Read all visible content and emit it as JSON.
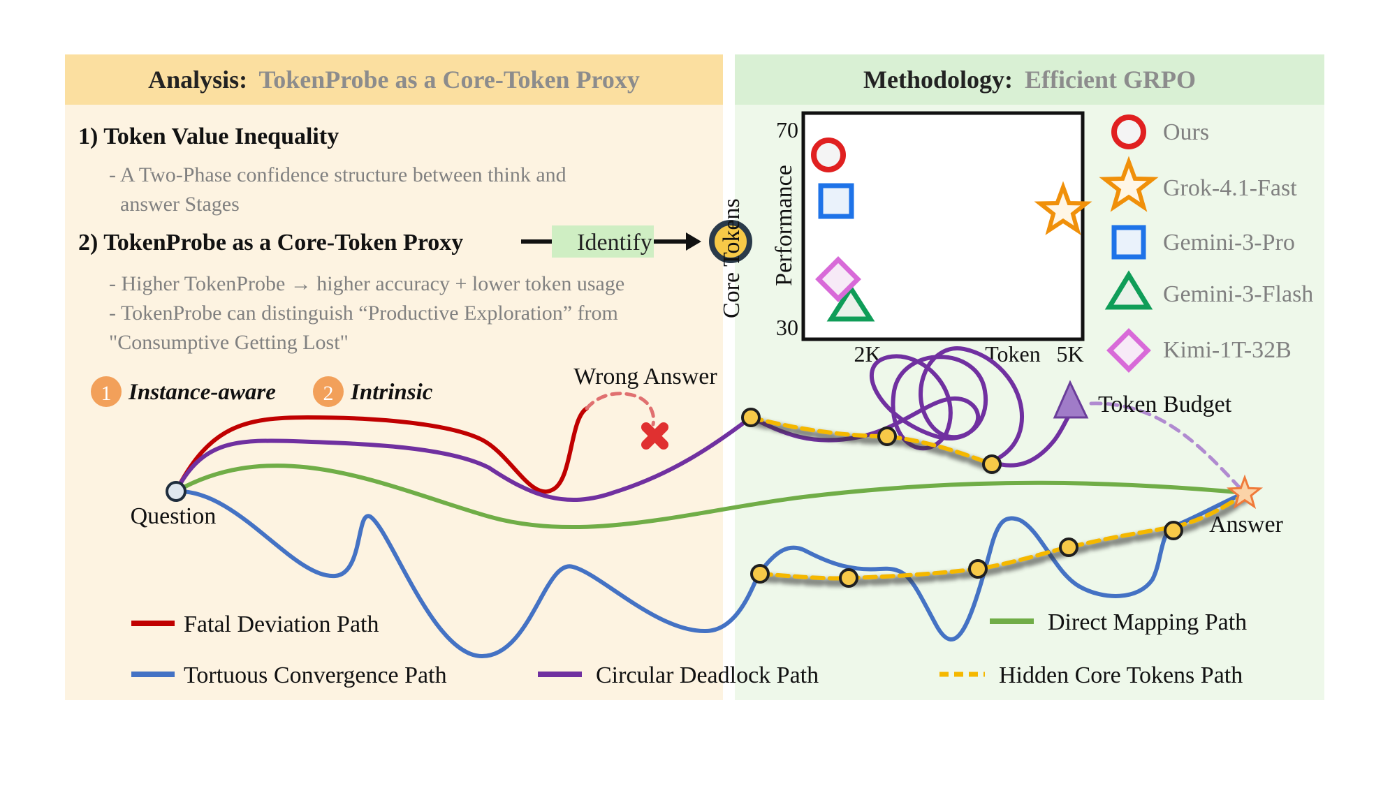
{
  "colors": {
    "analysis_bg": "#fdf3e1",
    "analysis_header": "#fbdfa0",
    "methodology_bg": "#eef8ea",
    "methodology_header": "#d9f0d4",
    "fatal": "#c00000",
    "tortuous": "#4472c4",
    "circular": "#7030a0",
    "direct": "#70ad47",
    "core": "#f5b800",
    "gray_text": "#808080",
    "badge": "#f2a05a"
  },
  "analysis": {
    "header_bold": "Analysis:",
    "header_rest": "TokenProbe as a Core-Token Proxy",
    "point1": {
      "title": "1) Token Value Inequality",
      "line1": "- A Two-Phase confidence structure between think and",
      "line2": "answer Stages"
    },
    "point2": {
      "title": "2) TokenProbe as a Core-Token Proxy",
      "identify": "Identify",
      "bullet1": "- Higher TokenProbe → higher accuracy + lower token usage",
      "bullet2": "- TokenProbe can distinguish “Productive Exploration” from",
      "bullet3": "\"Consumptive Getting Lost\""
    },
    "core_tokens_label": "Core Tokens",
    "badges": [
      {
        "number": "1",
        "label": "Instance-aware"
      },
      {
        "number": "2",
        "label": "Intrinsic"
      }
    ]
  },
  "methodology": {
    "header_bold": "Methodology:",
    "header_rest": "Efficient GRPO"
  },
  "scatter": {
    "ylabel": "Performance",
    "xlabel": "Token",
    "yticks": [
      "70",
      "30"
    ],
    "xticks": [
      "2K",
      "5K"
    ],
    "legend": [
      {
        "name": "Ours",
        "marker": "circle",
        "color": "#e02020"
      },
      {
        "name": "Grok-4.1-Fast",
        "marker": "star",
        "color": "#f0900a"
      },
      {
        "name": "Gemini-3-Pro",
        "marker": "square",
        "color": "#1e73e8"
      },
      {
        "name": "Gemini-3-Flash",
        "marker": "triangle",
        "color": "#0f9d58"
      },
      {
        "name": "Kimi-1T-32B",
        "marker": "diamond",
        "color": "#d86ad8"
      }
    ]
  },
  "diagram": {
    "question": "Question",
    "answer": "Answer",
    "wrong_answer": "Wrong Answer",
    "token_budget": "Token Budget"
  },
  "legend": {
    "fatal": "Fatal Deviation Path",
    "tortuous": "Tortuous Convergence Path",
    "circular": "Circular Deadlock Path",
    "direct": "Direct Mapping Path",
    "core": "Hidden Core Tokens Path"
  }
}
